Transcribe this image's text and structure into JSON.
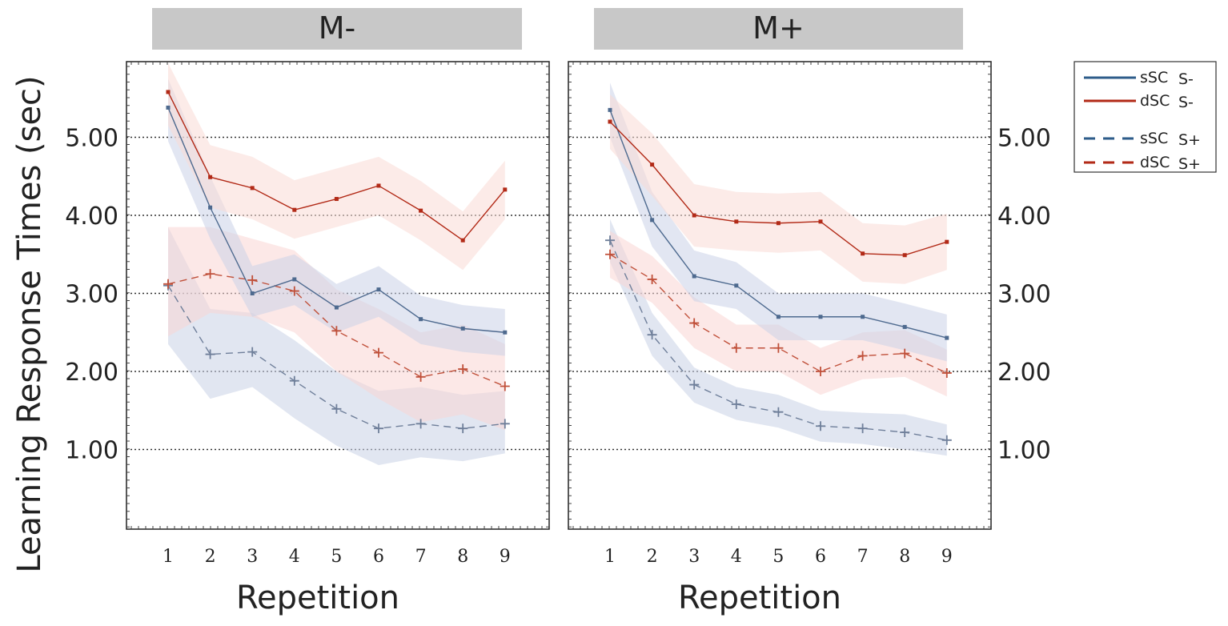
{
  "chart_data": {
    "type": "line",
    "ylabel": "Learning Response Times (sec)",
    "xlabel": "Repetition",
    "x": [
      1,
      2,
      3,
      4,
      5,
      6,
      7,
      8,
      9
    ],
    "xtick_labels": [
      "1",
      "2",
      "3",
      "4",
      "5",
      "6",
      "7",
      "8",
      "9"
    ],
    "ylim": [
      0,
      6
    ],
    "yticks": [
      1,
      2,
      3,
      4,
      5
    ],
    "ytick_labels": [
      "1.00",
      "2.00",
      "3.00",
      "4.00",
      "5.00"
    ],
    "grid": "horizontal dotted",
    "legend": {
      "placement": "right",
      "entries": [
        {
          "label": "sSC",
          "cond": "S-",
          "color": "#2E5C8A",
          "dash": "solid"
        },
        {
          "label": "dSC",
          "cond": "S-",
          "color": "#B22A17",
          "dash": "solid"
        },
        {
          "label": "sSC",
          "cond": "S+",
          "color": "#2E5C8A",
          "dash": "dashed"
        },
        {
          "label": "dSC",
          "cond": "S+",
          "color": "#B22A17",
          "dash": "dashed"
        }
      ]
    },
    "panels": [
      {
        "title": "M-",
        "series": [
          {
            "name": "sSC S+",
            "color": "#6F7F9A",
            "band": "#C9D1E6",
            "dash": "dashed",
            "marker": "plus",
            "values": [
              3.1,
              2.22,
              2.25,
              1.88,
              1.52,
              1.27,
              1.33,
              1.27,
              1.33
            ],
            "lower": [
              2.35,
              1.65,
              1.8,
              1.4,
              1.05,
              0.8,
              0.9,
              0.85,
              0.95
            ],
            "upper": [
              3.85,
              2.8,
              2.75,
              2.4,
              2.0,
              1.75,
              1.8,
              1.7,
              1.75
            ]
          },
          {
            "name": "dSC S+",
            "color": "#C0503A",
            "band": "#FAD6D3",
            "dash": "dashed",
            "marker": "plus",
            "values": [
              3.12,
              3.25,
              3.17,
              3.03,
              2.52,
              2.24,
              1.93,
              2.03,
              1.81
            ],
            "lower": [
              2.45,
              2.75,
              2.7,
              2.5,
              2.0,
              1.65,
              1.35,
              1.45,
              1.25
            ],
            "upper": [
              3.85,
              3.85,
              3.7,
              3.55,
              3.05,
              2.8,
              2.5,
              2.6,
              2.35
            ]
          },
          {
            "name": "sSC S-",
            "color": "#4E6A8F",
            "band": "#CBD2E8",
            "dash": "solid",
            "marker": "dot",
            "values": [
              5.38,
              4.1,
              3.0,
              3.18,
              2.82,
              3.05,
              2.67,
              2.55,
              2.5
            ],
            "lower": [
              4.95,
              3.7,
              2.7,
              2.85,
              2.5,
              2.7,
              2.35,
              2.25,
              2.2
            ],
            "upper": [
              5.75,
              4.5,
              3.35,
              3.5,
              3.12,
              3.35,
              2.97,
              2.85,
              2.8
            ]
          },
          {
            "name": "dSC S-",
            "color": "#B22A17",
            "band": "#FADAD5",
            "dash": "solid",
            "marker": "dot",
            "values": [
              5.58,
              4.49,
              4.35,
              4.07,
              4.21,
              4.38,
              4.06,
              3.68,
              4.33
            ],
            "lower": [
              5.15,
              4.1,
              3.95,
              3.7,
              3.85,
              4.0,
              3.68,
              3.3,
              3.95
            ],
            "upper": [
              5.95,
              4.9,
              4.75,
              4.45,
              4.6,
              4.75,
              4.44,
              4.05,
              4.7
            ]
          }
        ]
      },
      {
        "title": "M+",
        "series": [
          {
            "name": "sSC S+",
            "color": "#6F7F9A",
            "band": "#C9D1E6",
            "dash": "dashed",
            "marker": "plus",
            "values": [
              3.68,
              2.47,
              1.83,
              1.58,
              1.48,
              1.3,
              1.27,
              1.22,
              1.12
            ],
            "lower": [
              3.4,
              2.2,
              1.6,
              1.38,
              1.28,
              1.1,
              1.07,
              1.0,
              0.92
            ],
            "upper": [
              3.95,
              2.75,
              2.05,
              1.8,
              1.7,
              1.5,
              1.47,
              1.45,
              1.32
            ]
          },
          {
            "name": "dSC S+",
            "color": "#C0503A",
            "band": "#FAD6D3",
            "dash": "dashed",
            "marker": "plus",
            "values": [
              3.5,
              3.18,
              2.62,
              2.3,
              2.3,
              2.0,
              2.2,
              2.23,
              1.98
            ],
            "lower": [
              3.2,
              2.88,
              2.3,
              2.0,
              2.0,
              1.7,
              1.9,
              1.93,
              1.68
            ],
            "upper": [
              3.8,
              3.48,
              2.95,
              2.6,
              2.6,
              2.3,
              2.5,
              2.53,
              2.28
            ]
          },
          {
            "name": "sSC S-",
            "color": "#4E6A8F",
            "band": "#CBD2E8",
            "dash": "solid",
            "marker": "dot",
            "values": [
              5.35,
              3.94,
              3.22,
              3.1,
              2.7,
              2.7,
              2.7,
              2.57,
              2.43
            ],
            "lower": [
              5.0,
              3.6,
              2.9,
              2.8,
              2.4,
              2.4,
              2.4,
              2.27,
              2.13
            ],
            "upper": [
              5.7,
              4.3,
              3.55,
              3.4,
              3.0,
              3.0,
              3.0,
              2.87,
              2.73
            ]
          },
          {
            "name": "dSC S-",
            "color": "#B22A17",
            "band": "#FADAD5",
            "dash": "solid",
            "marker": "dot",
            "values": [
              5.2,
              4.65,
              4.0,
              3.92,
              3.9,
              3.92,
              3.51,
              3.49,
              3.66
            ],
            "lower": [
              4.85,
              4.25,
              3.6,
              3.55,
              3.52,
              3.55,
              3.15,
              3.12,
              3.3
            ],
            "upper": [
              5.55,
              5.05,
              4.4,
              4.3,
              4.28,
              4.3,
              3.9,
              3.87,
              4.02
            ]
          }
        ]
      }
    ]
  }
}
